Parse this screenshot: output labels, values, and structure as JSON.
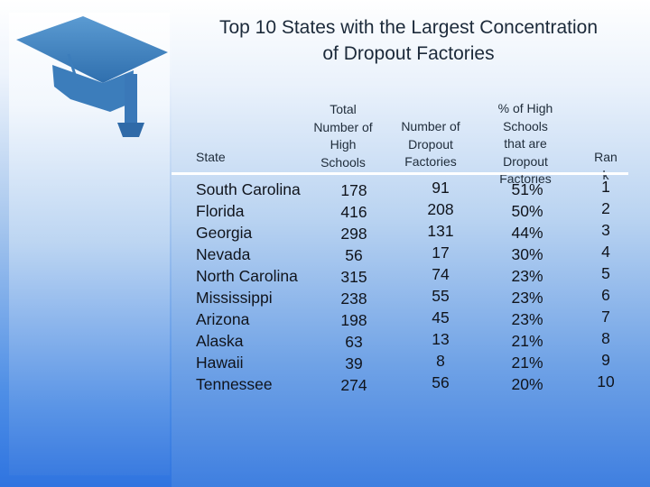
{
  "title_line1": "Top 10 States with the Largest Concentration",
  "title_line2": "of Dropout Factories",
  "headers": {
    "state": "State",
    "total": [
      "Total",
      "Number of",
      "High",
      "Schools"
    ],
    "dropout": [
      "Number of",
      "Dropout",
      "Factories"
    ],
    "percent": [
      "% of High",
      "Schools",
      "that are",
      "Dropout",
      "Factories"
    ],
    "rank": [
      "Ran",
      "k"
    ]
  },
  "rows": [
    {
      "state": "South Carolina",
      "total": "178",
      "dropout": "91",
      "percent": "51%",
      "rank": "1"
    },
    {
      "state": "Florida",
      "total": "416",
      "dropout": "208",
      "percent": "50%",
      "rank": "2"
    },
    {
      "state": "Georgia",
      "total": "298",
      "dropout": "131",
      "percent": "44%",
      "rank": "3"
    },
    {
      "state": "Nevada",
      "total": "56",
      "dropout": "17",
      "percent": "30%",
      "rank": "4"
    },
    {
      "state": "North Carolina",
      "total": "315",
      "dropout": "74",
      "percent": "23%",
      "rank": "5"
    },
    {
      "state": "Mississippi",
      "total": "238",
      "dropout": "55",
      "percent": "23%",
      "rank": "6"
    },
    {
      "state": "Arizona",
      "total": "198",
      "dropout": "45",
      "percent": "23%",
      "rank": "7"
    },
    {
      "state": "Alaska",
      "total": "63",
      "dropout": "13",
      "percent": "21%",
      "rank": "8"
    },
    {
      "state": "Hawaii",
      "total": "39",
      "dropout": "8",
      "percent": "21%",
      "rank": "9"
    },
    {
      "state": "Tennessee",
      "total": "274",
      "dropout": "56",
      "percent": "20%",
      "rank": "10"
    }
  ],
  "icons": {
    "logo": "graduation-cap-icon"
  },
  "colors": {
    "cap": "#3f86c6",
    "rule": "#ffffff"
  }
}
